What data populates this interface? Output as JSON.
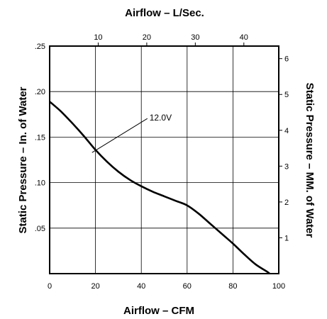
{
  "chart_data": {
    "type": "line",
    "title_top": "Airflow  –  L/Sec.",
    "xlabel": "Airflow  –  CFM",
    "ylabel_left": "Static Pressure  –  In. of Water",
    "ylabel_right": "Static Pressure  –  MM. of Water",
    "x_ticks": [
      "0",
      "20",
      "40",
      "60",
      "80",
      "100"
    ],
    "x_top_ticks": [
      "10",
      "20",
      "30",
      "40"
    ],
    "y_left_ticks": [
      ".05",
      ".10",
      ".15",
      ".20",
      ".25"
    ],
    "y_right_ticks": [
      "1",
      "2",
      "3",
      "4",
      "5",
      "6"
    ],
    "xlim": [
      0,
      100
    ],
    "ylim": [
      0,
      0.25
    ],
    "grid": true,
    "series": [
      {
        "name": "12.0V",
        "x": [
          0,
          5,
          10,
          15,
          20,
          25,
          30,
          35,
          40,
          45,
          50,
          55,
          60,
          65,
          70,
          75,
          80,
          85,
          90,
          95,
          96
        ],
        "y": [
          0.189,
          0.178,
          0.165,
          0.151,
          0.136,
          0.123,
          0.112,
          0.103,
          0.096,
          0.09,
          0.085,
          0.08,
          0.075,
          0.066,
          0.055,
          0.044,
          0.033,
          0.021,
          0.01,
          0.002,
          0.0
        ]
      }
    ],
    "annotation": {
      "text": "12.0V",
      "point_x": 18.5,
      "point_y": 0.133
    }
  }
}
